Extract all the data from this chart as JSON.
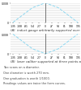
{
  "subplot1_label": "(A)  induct gauge arbitrarily supported over the entire surface",
  "subplot2_label": "(B)  laser caliber supported at three points at 120°",
  "footnote": [
    "Two scans on a diameter.",
    "One diameter is worth 270 mm.",
    "One graduation is worth 1/1000.",
    "Readings values are twice the form curves."
  ],
  "x_values": [
    -135,
    -108,
    -81,
    -54,
    -27,
    0,
    27,
    54,
    81,
    108,
    135
  ],
  "y1_values": [
    0,
    2,
    4,
    6,
    7,
    8,
    7,
    6,
    4,
    2,
    0
  ],
  "y2_values": [
    8,
    6,
    4,
    2,
    1,
    0,
    1,
    2,
    4,
    6,
    8
  ],
  "ylim": [
    0,
    8
  ],
  "xlim": [
    -145,
    145
  ],
  "xticks": [
    -135,
    -108,
    -81,
    -54,
    -27,
    0,
    27,
    54,
    81,
    108,
    135
  ],
  "xtick_labels": [
    "-135",
    "-108",
    "-81",
    "-54",
    "-27",
    "0",
    "27",
    "54",
    "81",
    "108",
    "135"
  ],
  "ytick_vals": [
    0,
    8
  ],
  "ytick_labels": [
    "0",
    "0.008"
  ],
  "n_hgrid": 9,
  "line_color": "#8DD8F0",
  "vline_color": "#444444",
  "grid_color": "#bbbbbb",
  "bg_color": "#ffffff",
  "label_fontsize": 2.8,
  "tick_fontsize": 2.2,
  "footnote_fontsize": 2.5
}
